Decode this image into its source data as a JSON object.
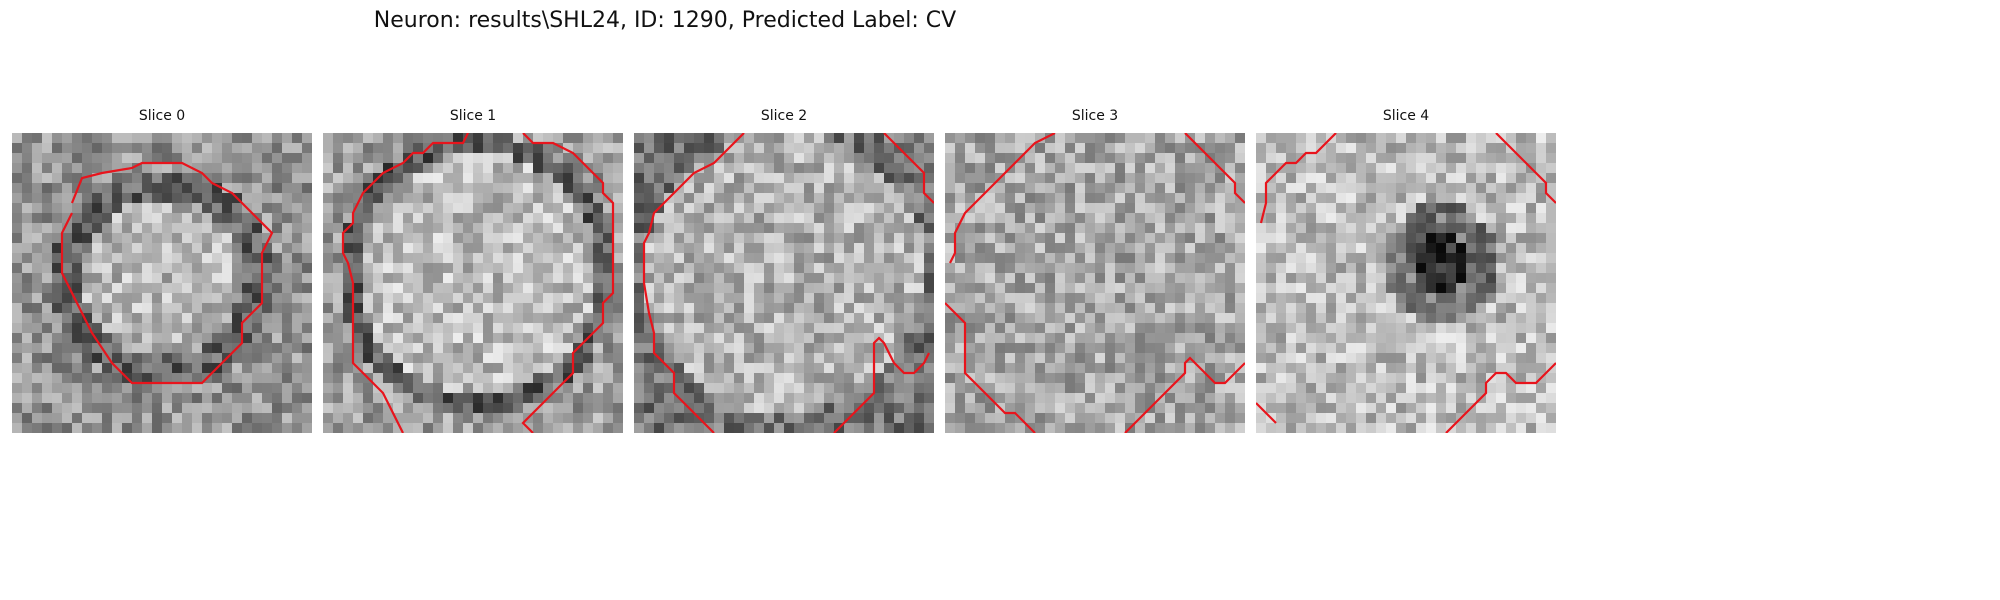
{
  "figure": {
    "title": "Neuron: results\\SHL24, ID: 1290, Predicted Label: CV",
    "contour_color": "#e8141c"
  },
  "panels": [
    {
      "title": "Slice 0"
    },
    {
      "title": "Slice 1"
    },
    {
      "title": "Slice 2"
    },
    {
      "title": "Slice 3"
    },
    {
      "title": "Slice 4"
    }
  ]
}
